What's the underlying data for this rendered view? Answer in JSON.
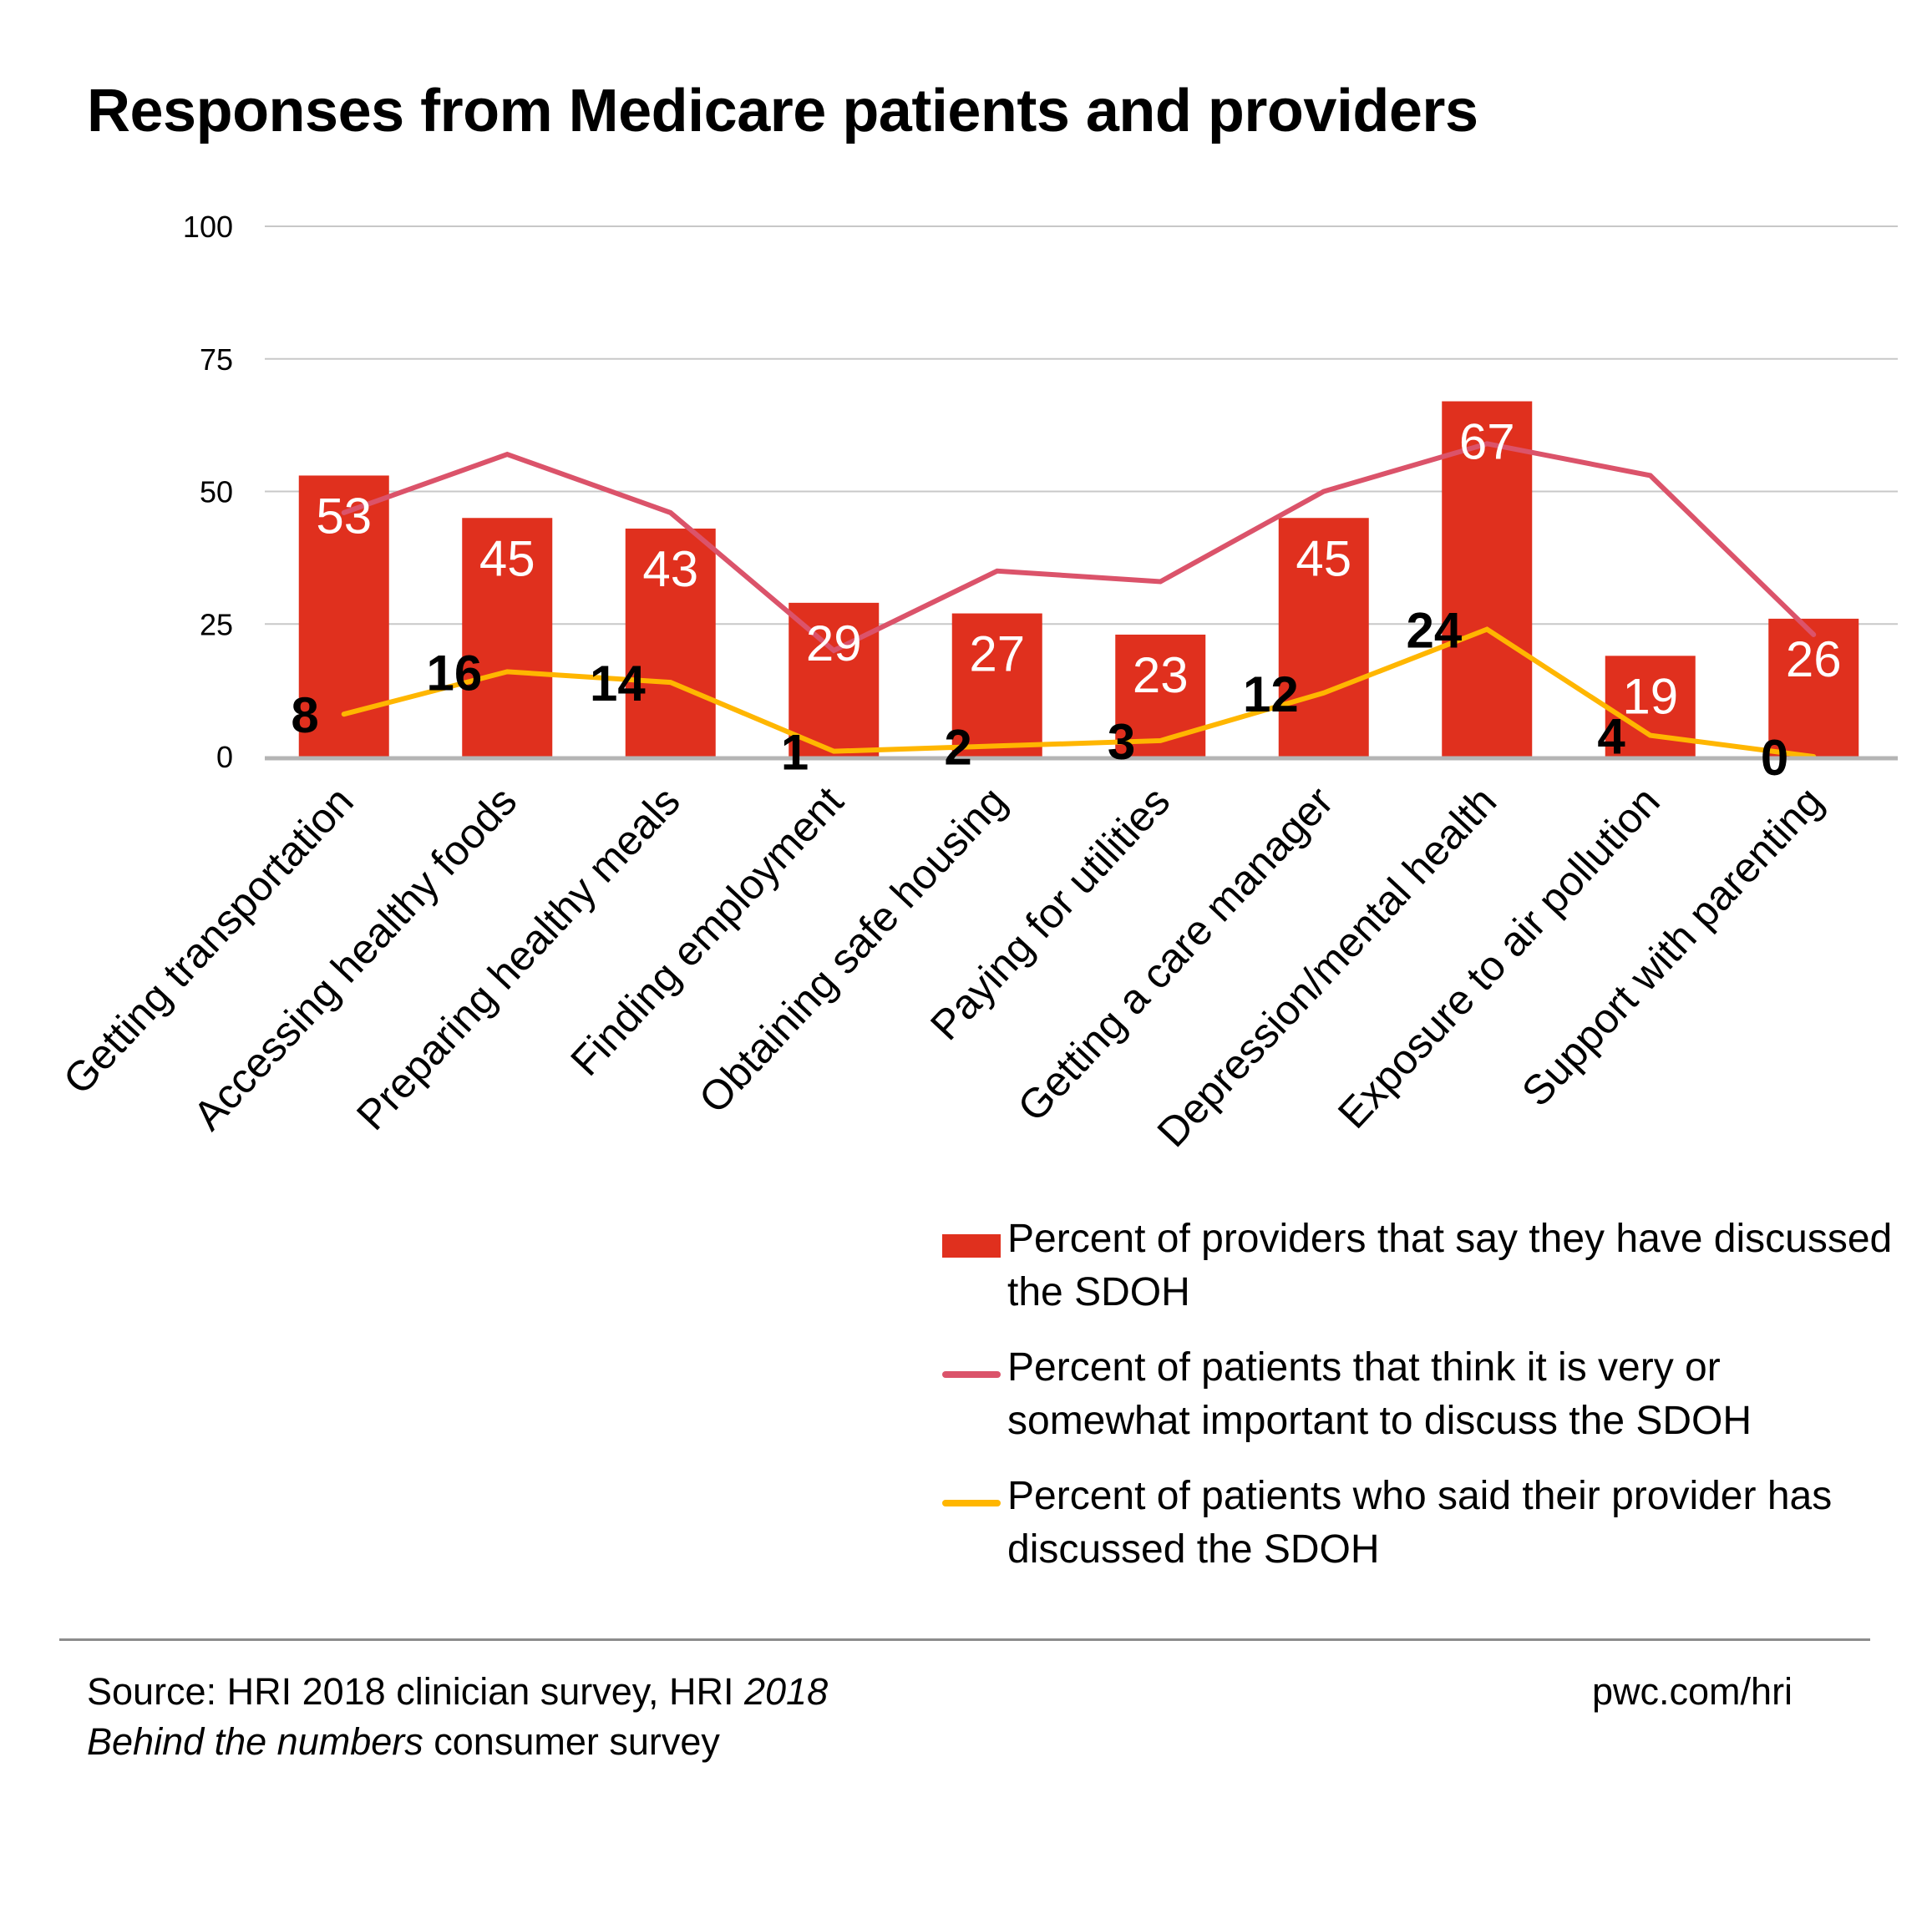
{
  "title": "Responses from Medicare patients and providers",
  "colors": {
    "bar": "#E0301E",
    "importance_line": "#DB536A",
    "discussed_line": "#FFB600",
    "gridline": "#C8C8C8",
    "axis": "#B4B4B4",
    "footer_rule": "#8C8C8C"
  },
  "chart_data": {
    "type": "bar",
    "title": "Responses from Medicare patients and providers",
    "xlabel": "",
    "ylabel": "",
    "ylim": [
      0,
      100
    ],
    "yticks": [
      0,
      25,
      50,
      75,
      100
    ],
    "grid": true,
    "legend_position": "bottom-right",
    "categories": [
      "Getting transportation",
      "Accessing healthy foods",
      "Preparing healthy meals",
      "Finding employment",
      "Obtaining safe housing",
      "Paying for utilities",
      "Getting a care manager",
      "Depression/mental health",
      "Exposure to air pollution",
      "Support with parenting"
    ],
    "series": [
      {
        "name": "Percent of providers that say they have discussed the SDOH",
        "type": "bar",
        "values": [
          53,
          45,
          43,
          29,
          27,
          23,
          45,
          67,
          19,
          26
        ],
        "labels_shown": true
      },
      {
        "name": "Percent of patients that think it is very or somewhat important to discuss the SDOH",
        "type": "line",
        "values": [
          46,
          57,
          46,
          20,
          35,
          33,
          50,
          59,
          53,
          23
        ],
        "labels_shown": false
      },
      {
        "name": "Percent of patients who said their provider has discussed the SDOH",
        "type": "line",
        "values": [
          8,
          16,
          14,
          1,
          2,
          3,
          12,
          24,
          4,
          0
        ],
        "labels_shown": true
      }
    ]
  },
  "legend": [
    {
      "label": "Percent of providers that say they have discussed the SDOH",
      "swatch": "bar"
    },
    {
      "label": "Percent of patients that think it is very or somewhat important to discuss the SDOH",
      "swatch": "line"
    },
    {
      "label": "Percent of patients who said their provider has discussed the SDOH",
      "swatch": "line"
    }
  ],
  "footer": {
    "source_prefix": "Source: HRI 2018 clinician survey, HRI ",
    "source_italic_1": "2018",
    "source_italic_2": "Behind the numbers",
    "source_suffix": " consumer survey",
    "site": "pwc.com/hri"
  }
}
